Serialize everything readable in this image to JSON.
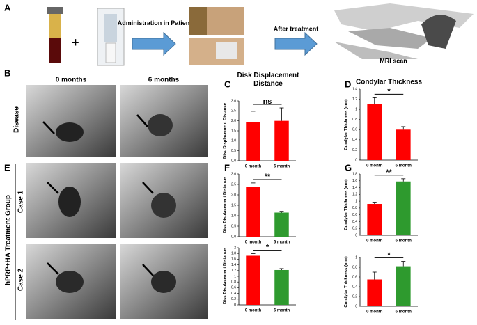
{
  "labels": [
    "A",
    "B",
    "C",
    "D",
    "E",
    "F",
    "G"
  ],
  "panel_a": {
    "plus": "+",
    "steps": [
      "Administration in Patient",
      "After treatment",
      "MRI scan"
    ]
  },
  "mri": {
    "columns": [
      "0 months",
      "6 months"
    ],
    "disease": "Disease",
    "group": "hPRP+HA Treatment Group",
    "cases": [
      "Case 1",
      "Case 2"
    ]
  },
  "chart_data": [
    {
      "type": "bar",
      "title": "Disk Displacement Distance",
      "ylabel": "Disc Displacement Distance",
      "categories": [
        "0 month",
        "6 month"
      ],
      "values": [
        1.93,
        2.0
      ],
      "errors": [
        0.55,
        0.65
      ],
      "colors": [
        "#ff0000",
        "#ff0000"
      ],
      "ylim": [
        0,
        3
      ],
      "yticks": [
        {
          "value": 0,
          "label": "0.0"
        },
        0.5,
        {
          "value": 1,
          "label": "1.0"
        },
        1.5,
        {
          "value": 2,
          "label": "2.0"
        },
        2.5,
        {
          "value": 3,
          "label": "3.0"
        }
      ],
      "annotation": "ns"
    },
    {
      "type": "bar",
      "title": "Condylar Thickness",
      "ylabel": "Condylar Thickness (mm)",
      "categories": [
        "0 month",
        "6 month"
      ],
      "values": [
        1.1,
        0.6
      ],
      "errors": [
        0.13,
        0.06
      ],
      "colors": [
        "#ff0000",
        "#ff0000"
      ],
      "ylim": [
        0,
        1.4
      ],
      "yticks": [
        0,
        0.2,
        0.4,
        0.6,
        0.8,
        1,
        1.2,
        1.4
      ],
      "annotation": "*"
    },
    {
      "type": "bar",
      "ylabel": "Disc Displacement Distance",
      "categories": [
        "0 month",
        "6 month"
      ],
      "values": [
        2.4,
        1.15
      ],
      "errors": [
        0.17,
        0.06
      ],
      "colors": [
        "#ff0000",
        "#2e9a2e"
      ],
      "ylim": [
        0,
        3
      ],
      "yticks": [
        {
          "value": 0,
          "label": "0.0"
        },
        0.5,
        {
          "value": 1,
          "label": "1.0"
        },
        1.5,
        {
          "value": 2,
          "label": "2.0"
        },
        2.5,
        {
          "value": 3,
          "label": "3.0"
        }
      ],
      "annotation": "**"
    },
    {
      "type": "bar",
      "ylabel": "Disc Displacement Distance",
      "categories": [
        "0 month",
        "6 month"
      ],
      "values": [
        1.72,
        1.22
      ],
      "errors": [
        0.07,
        0.05
      ],
      "colors": [
        "#ff0000",
        "#2e9a2e"
      ],
      "ylim": [
        0,
        2
      ],
      "yticks": [
        0,
        0.2,
        0.4,
        0.6,
        0.8,
        1,
        1.2,
        1.4,
        1.6,
        1.8,
        2
      ],
      "annotation": "*"
    },
    {
      "type": "bar",
      "ylabel": "Condylar Thickness (mm)",
      "categories": [
        "0 month",
        "6 month"
      ],
      "values": [
        0.92,
        1.58
      ],
      "errors": [
        0.05,
        0.08
      ],
      "colors": [
        "#ff0000",
        "#2e9a2e"
      ],
      "ylim": [
        0,
        1.8
      ],
      "yticks": [
        0,
        0.2,
        0.4,
        0.6,
        0.8,
        1,
        1.2,
        1.4,
        1.6,
        1.8
      ],
      "annotation": "**"
    },
    {
      "type": "bar",
      "ylabel": "Condylar Thickness (mm)",
      "categories": [
        "0 month",
        "6 month"
      ],
      "values": [
        0.55,
        0.82
      ],
      "errors": [
        0.15,
        0.1
      ],
      "colors": [
        "#ff0000",
        "#2e9a2e"
      ],
      "ylim": [
        0,
        1
      ],
      "yticks": [
        0,
        0.2,
        0.4,
        0.6,
        0.8,
        1
      ],
      "annotation": "*"
    }
  ]
}
